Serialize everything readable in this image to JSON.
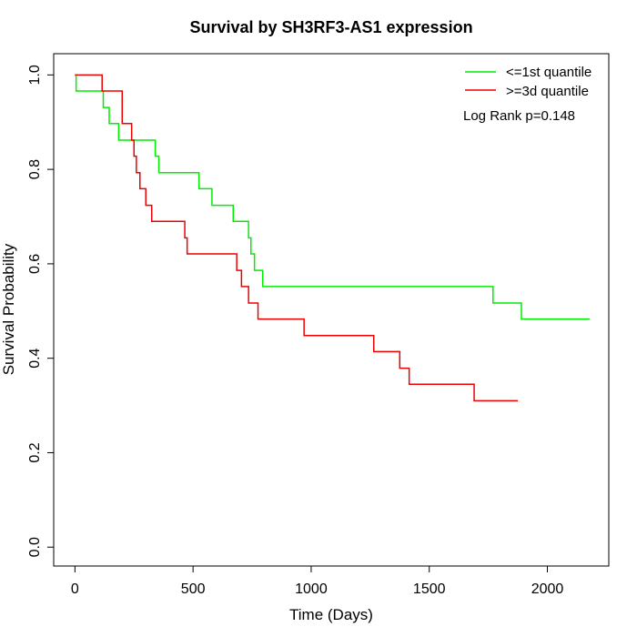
{
  "chart_data": {
    "type": "line",
    "title": "Survival by SH3RF3-AS1 expression",
    "xlabel": "Time (Days)",
    "ylabel": "Survival Probability",
    "xlim": [
      -90,
      2260
    ],
    "ylim": [
      -0.04,
      1.045
    ],
    "x_ticks": [
      0,
      500,
      1000,
      1500,
      2000
    ],
    "y_ticks": [
      0.0,
      0.2,
      0.4,
      0.6,
      0.8,
      1.0
    ],
    "x_tick_labels": [
      "0",
      "500",
      "1000",
      "1500",
      "2000"
    ],
    "y_tick_labels": [
      "0.0",
      "0.2",
      "0.4",
      "0.6",
      "0.8",
      "1.0"
    ],
    "grid": false,
    "legend_position": "top-right",
    "annotation": "Log Rank p=0.148",
    "series": [
      {
        "name": "<=1st quantile",
        "color": "#00ee00",
        "step": true,
        "x": [
          0,
          5,
          120,
          145,
          185,
          340,
          355,
          525,
          580,
          670,
          735,
          745,
          760,
          795,
          1770,
          1890,
          2180
        ],
        "y": [
          1.0,
          0.966,
          0.931,
          0.897,
          0.862,
          0.828,
          0.793,
          0.759,
          0.724,
          0.69,
          0.655,
          0.621,
          0.586,
          0.552,
          0.517,
          0.483,
          0.483
        ]
      },
      {
        "name": ">=3d quantile",
        "color": "#ee0000",
        "step": true,
        "x": [
          0,
          115,
          200,
          240,
          250,
          260,
          275,
          300,
          325,
          465,
          475,
          685,
          705,
          735,
          775,
          970,
          1265,
          1375,
          1415,
          1690,
          1875
        ],
        "y": [
          1.0,
          0.966,
          0.897,
          0.862,
          0.828,
          0.793,
          0.759,
          0.724,
          0.69,
          0.655,
          0.621,
          0.586,
          0.552,
          0.517,
          0.483,
          0.448,
          0.414,
          0.379,
          0.345,
          0.31,
          0.31
        ]
      }
    ]
  }
}
